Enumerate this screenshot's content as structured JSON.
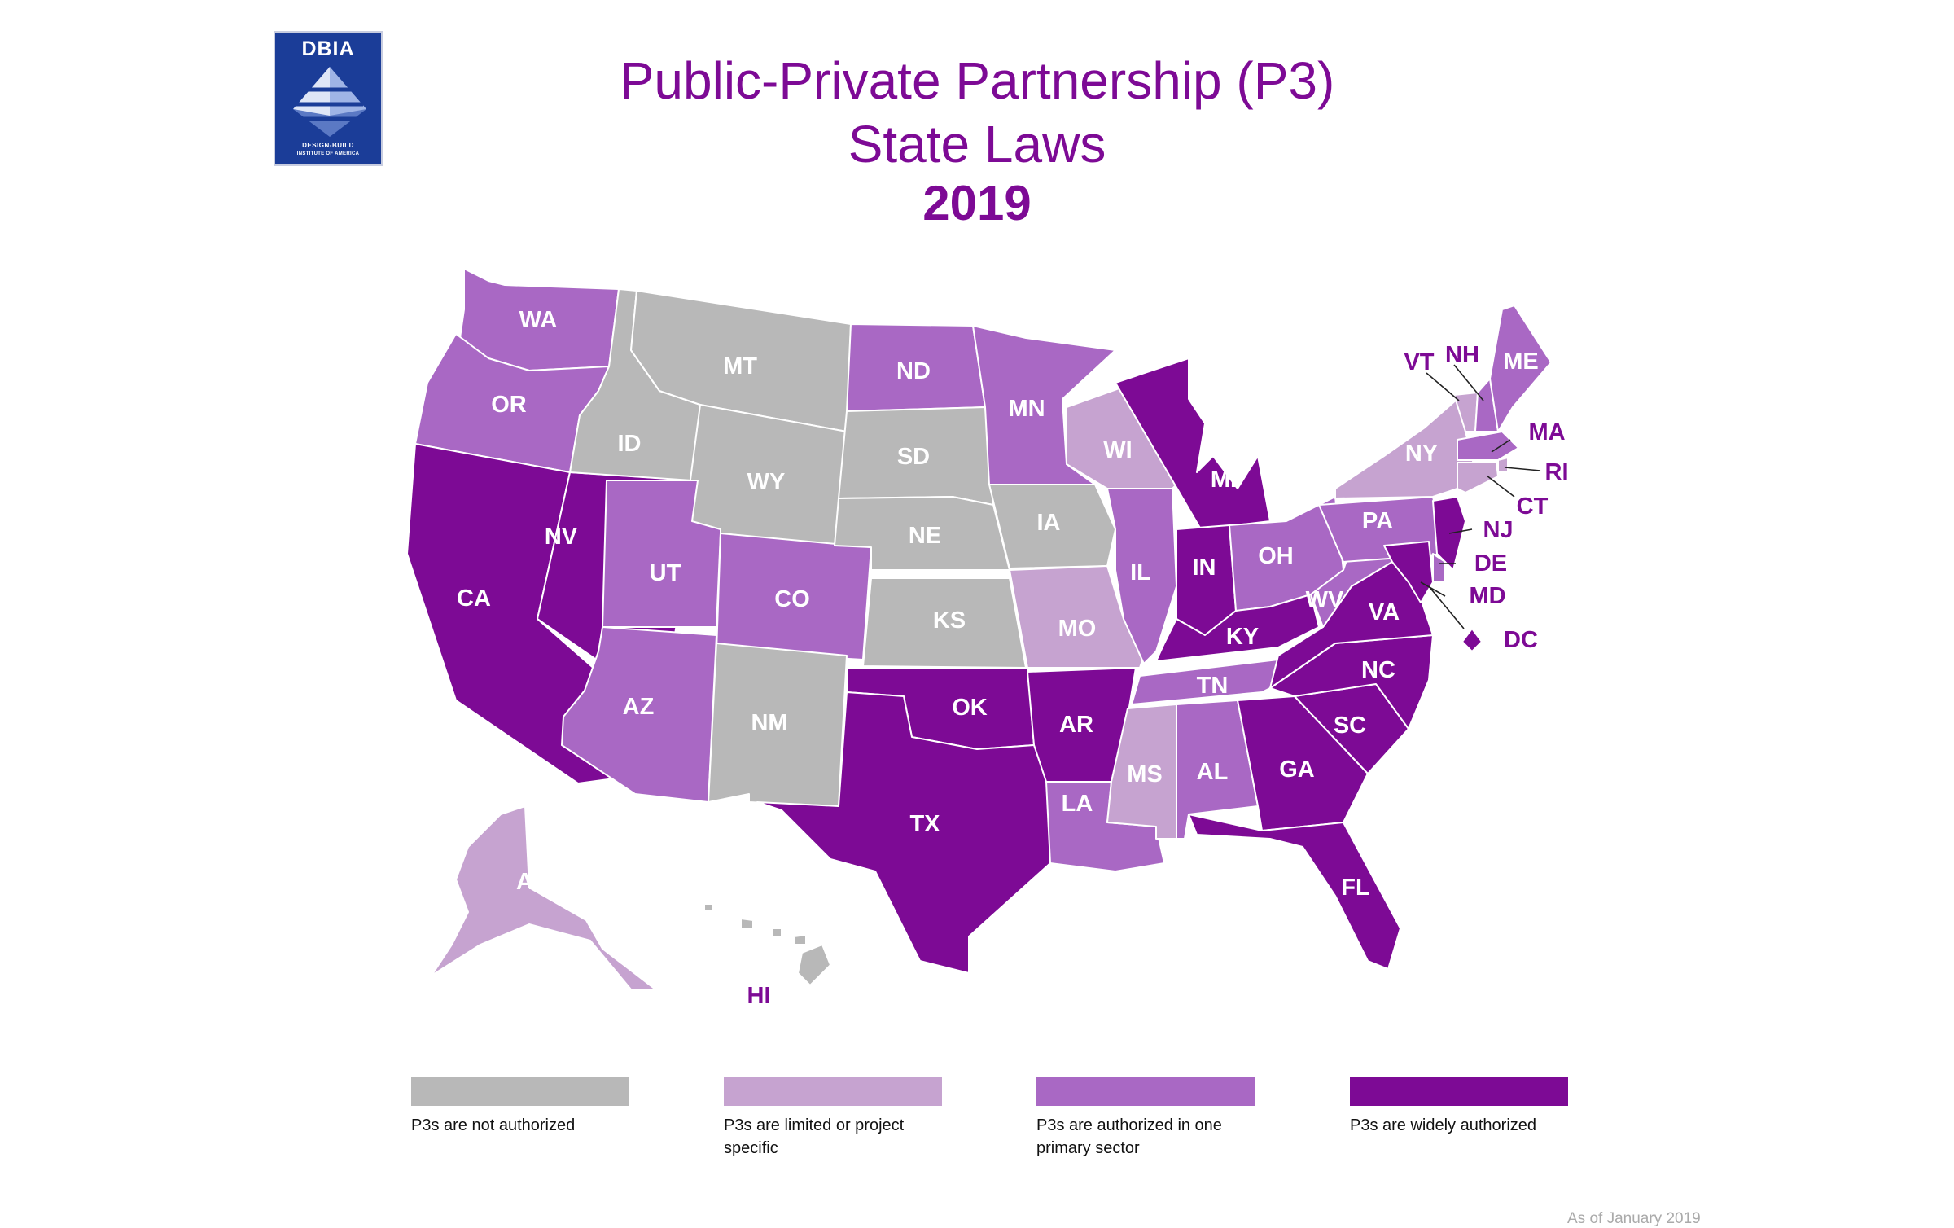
{
  "logo": {
    "name": "DBIA",
    "line1": "DESIGN-BUILD",
    "line2": "INSTITUTE OF AMERICA"
  },
  "title": {
    "line1": "Public-Private Partnership (P3)",
    "line2": "State Laws",
    "year": "2019"
  },
  "categories": {
    "none": {
      "color": "#b8b8b8",
      "label": "P3s are not authorized"
    },
    "limited": {
      "color": "#c6a3d0",
      "label": "P3s are limited or project specific"
    },
    "one": {
      "color": "#a968c4",
      "label": "P3s are authorized in one primary sector"
    },
    "wide": {
      "color": "#7d0a95",
      "label": "P3s are widely authorized"
    }
  },
  "states": [
    {
      "abbr": "WA",
      "category": "one"
    },
    {
      "abbr": "OR",
      "category": "one"
    },
    {
      "abbr": "CA",
      "category": "wide"
    },
    {
      "abbr": "NV",
      "category": "wide"
    },
    {
      "abbr": "ID",
      "category": "none"
    },
    {
      "abbr": "MT",
      "category": "none"
    },
    {
      "abbr": "WY",
      "category": "none"
    },
    {
      "abbr": "UT",
      "category": "one"
    },
    {
      "abbr": "CO",
      "category": "one"
    },
    {
      "abbr": "AZ",
      "category": "one"
    },
    {
      "abbr": "NM",
      "category": "none"
    },
    {
      "abbr": "ND",
      "category": "one"
    },
    {
      "abbr": "SD",
      "category": "none"
    },
    {
      "abbr": "NE",
      "category": "none"
    },
    {
      "abbr": "KS",
      "category": "none"
    },
    {
      "abbr": "OK",
      "category": "wide"
    },
    {
      "abbr": "TX",
      "category": "wide"
    },
    {
      "abbr": "MN",
      "category": "one"
    },
    {
      "abbr": "IA",
      "category": "none"
    },
    {
      "abbr": "MO",
      "category": "limited"
    },
    {
      "abbr": "AR",
      "category": "wide"
    },
    {
      "abbr": "LA",
      "category": "one"
    },
    {
      "abbr": "WI",
      "category": "limited"
    },
    {
      "abbr": "IL",
      "category": "one"
    },
    {
      "abbr": "MI",
      "category": "wide"
    },
    {
      "abbr": "IN",
      "category": "wide"
    },
    {
      "abbr": "OH",
      "category": "one"
    },
    {
      "abbr": "KY",
      "category": "wide"
    },
    {
      "abbr": "TN",
      "category": "one"
    },
    {
      "abbr": "MS",
      "category": "limited"
    },
    {
      "abbr": "AL",
      "category": "one"
    },
    {
      "abbr": "GA",
      "category": "wide"
    },
    {
      "abbr": "FL",
      "category": "wide"
    },
    {
      "abbr": "SC",
      "category": "wide"
    },
    {
      "abbr": "NC",
      "category": "wide"
    },
    {
      "abbr": "VA",
      "category": "wide"
    },
    {
      "abbr": "WV",
      "category": "one"
    },
    {
      "abbr": "PA",
      "category": "one"
    },
    {
      "abbr": "NY",
      "category": "limited"
    },
    {
      "abbr": "VT",
      "category": "limited"
    },
    {
      "abbr": "NH",
      "category": "one"
    },
    {
      "abbr": "ME",
      "category": "one"
    },
    {
      "abbr": "MA",
      "category": "one"
    },
    {
      "abbr": "RI",
      "category": "limited"
    },
    {
      "abbr": "CT",
      "category": "limited"
    },
    {
      "abbr": "NJ",
      "category": "wide"
    },
    {
      "abbr": "DE",
      "category": "one"
    },
    {
      "abbr": "MD",
      "category": "wide"
    },
    {
      "abbr": "DC",
      "category": "wide"
    },
    {
      "abbr": "AK",
      "category": "limited"
    },
    {
      "abbr": "HI",
      "category": "none"
    }
  ],
  "footnote": "As of January 2019"
}
